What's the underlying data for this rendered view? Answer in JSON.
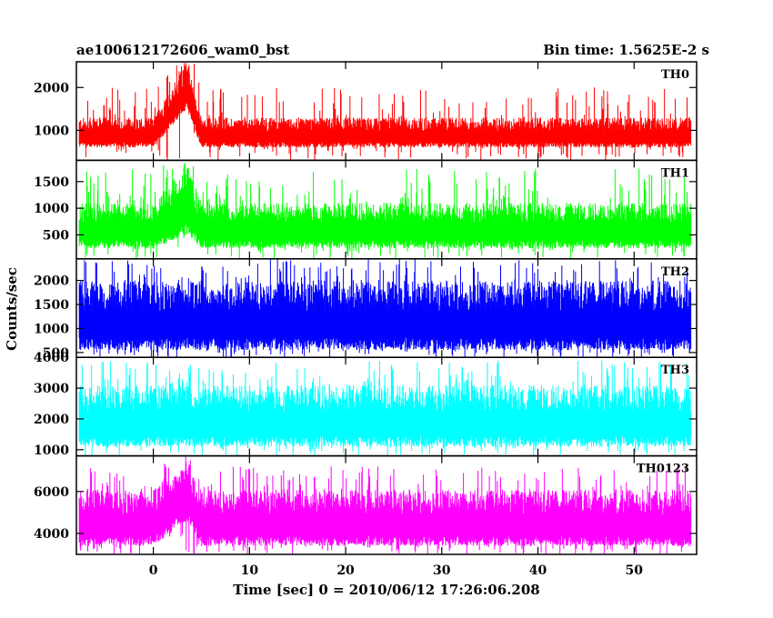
{
  "header": {
    "title_left": "ae100612172606_wam0_bst",
    "title_right": "Bin time: 1.5625E-2 s"
  },
  "chart_data": {
    "type": "line",
    "title": "ae100612172606_wam0_bst",
    "subtitle": "Bin time: 1.5625E-2 s",
    "xlabel": "Time [sec] 0 = 2010/06/12 17:26:06.208",
    "ylabel": "Counts/sec",
    "xlim": [
      -8,
      56.5
    ],
    "x_ticks": [
      0,
      10,
      20,
      30,
      40,
      50
    ],
    "data_x_range": [
      -7.7,
      55.9
    ],
    "grid": false,
    "legend": "none",
    "panels": [
      {
        "name": "TH0",
        "color": "#ff0000",
        "ylim": [
          300,
          2600
        ],
        "y_ticks": [
          1000,
          2000
        ],
        "baseline_min": 600,
        "baseline_max": 1300,
        "spike_max": 2000,
        "burst": {
          "start": 0,
          "peak": 3.5,
          "end": 5.0,
          "peak_max": 2600,
          "peak_min": 1500
        }
      },
      {
        "name": "TH1",
        "color": "#00ff00",
        "ylim": [
          50,
          1900
        ],
        "y_ticks": [
          500,
          1000,
          1500
        ],
        "baseline_min": 250,
        "baseline_max": 1100,
        "spike_max": 1750,
        "burst": {
          "start": 0,
          "peak": 3.5,
          "end": 5.0,
          "peak_max": 1850,
          "peak_min": 500
        }
      },
      {
        "name": "TH2",
        "color": "#0000ff",
        "ylim": [
          400,
          2450
        ],
        "y_ticks": [
          500,
          1000,
          1500,
          2000
        ],
        "baseline_min": 550,
        "baseline_max": 2000,
        "spike_max": 2450,
        "burst": null
      },
      {
        "name": "TH3",
        "color": "#00ffff",
        "ylim": [
          800,
          4000
        ],
        "y_ticks": [
          1000,
          2000,
          3000,
          4000
        ],
        "baseline_min": 1100,
        "baseline_max": 3100,
        "spike_max": 3900,
        "burst": null
      },
      {
        "name": "TH0123",
        "color": "#ff00ff",
        "ylim": [
          3000,
          7700
        ],
        "y_ticks": [
          4000,
          6000
        ],
        "baseline_min": 3400,
        "baseline_max": 6100,
        "spike_max": 7200,
        "burst": {
          "start": 0,
          "peak": 3.5,
          "end": 5.0,
          "peak_max": 7700,
          "peak_min": 4600
        }
      }
    ]
  }
}
